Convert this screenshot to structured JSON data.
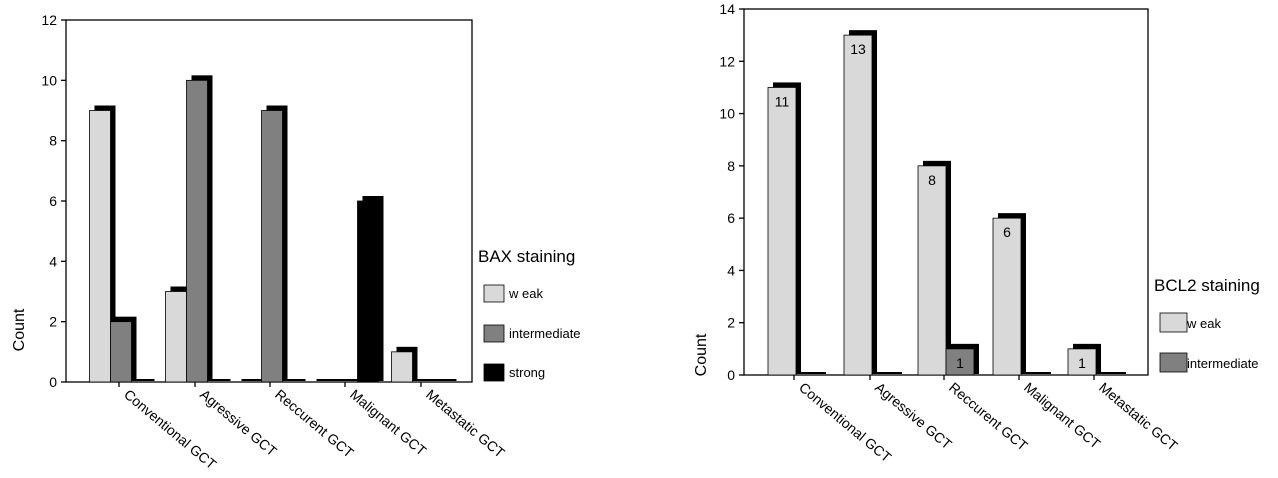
{
  "chart_data": [
    {
      "type": "bar",
      "ylabel": "Count",
      "ylim": [
        0,
        12
      ],
      "yticks": [
        0,
        2,
        4,
        6,
        8,
        10,
        12
      ],
      "categories": [
        "Conventional GCT",
        "Agressive GCT",
        "Reccurent GCT",
        "Malignant GCT",
        "Metastatic GCT"
      ],
      "legend_title": "BAX staining",
      "legend_position": "right",
      "series": [
        {
          "name": "weak",
          "legend_label": "w eak",
          "color": "#d9d9d9",
          "values": [
            9,
            3,
            0,
            0,
            1
          ]
        },
        {
          "name": "intermediate",
          "legend_label": "intermediate",
          "color": "#808080",
          "values": [
            2,
            10,
            9,
            0,
            0
          ]
        },
        {
          "name": "strong",
          "legend_label": "strong",
          "color": "#000000",
          "values": [
            0,
            0,
            0,
            6,
            0
          ]
        }
      ],
      "data_labels": false
    },
    {
      "type": "bar",
      "ylabel": "Count",
      "ylim": [
        0,
        14
      ],
      "yticks": [
        0,
        2,
        4,
        6,
        8,
        10,
        12,
        14
      ],
      "categories": [
        "Conventional GCT",
        "Agressive GCT",
        "Reccurent GCT",
        "Malignant GCT",
        "Metastatic GCT"
      ],
      "legend_title": "BCL2 staining",
      "legend_position": "right",
      "series": [
        {
          "name": "weak",
          "legend_label": "w eak",
          "color": "#d9d9d9",
          "values": [
            11,
            13,
            8,
            6,
            1
          ]
        },
        {
          "name": "intermediate",
          "legend_label": "intermediate",
          "color": "#808080",
          "values": [
            0,
            0,
            1,
            0,
            0
          ]
        }
      ],
      "data_labels": true
    }
  ]
}
